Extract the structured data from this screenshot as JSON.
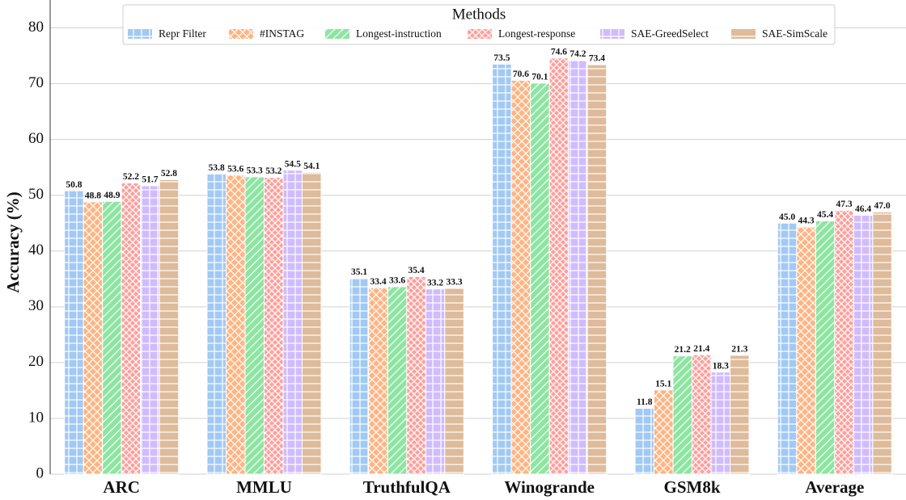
{
  "chart_data": {
    "type": "bar",
    "y_label": "Accuracy (%)",
    "legend_title": "Methods",
    "legend_position": "upper center",
    "grid": true,
    "categories": [
      "ARC",
      "MMLU",
      "TruthfulQA",
      "Winogrande",
      "GSM8k",
      "Average"
    ],
    "ylim": [
      0,
      85
    ],
    "yticks": [
      0,
      10,
      20,
      30,
      40,
      50,
      60,
      70,
      80
    ],
    "series": [
      {
        "name": "Repr Filter",
        "color": "#a1c9f4",
        "hatch": "+",
        "values": [
          50.8,
          53.8,
          35.1,
          73.5,
          11.8,
          45.0
        ],
        "value_labels": [
          "50.8",
          "53.8",
          "35.1",
          "73.5",
          "11.8",
          "45.0"
        ]
      },
      {
        "name": "#INSTAG",
        "color": "#ffb482",
        "hatch": "x",
        "values": [
          48.8,
          53.6,
          33.4,
          70.6,
          15.1,
          44.3
        ],
        "value_labels": [
          "48.8",
          "53.6",
          "33.4",
          "70.6",
          "15.1",
          "44.3"
        ]
      },
      {
        "name": "Longest-instruction",
        "color": "#8de5a1",
        "hatch": "/",
        "values": [
          48.9,
          53.3,
          33.6,
          70.1,
          21.2,
          45.4
        ],
        "value_labels": [
          "48.9",
          "53.3",
          "33.6",
          "70.1",
          "21.2",
          "45.4"
        ]
      },
      {
        "name": "Longest-response",
        "color": "#ff9f9b",
        "hatch": "x",
        "values": [
          52.2,
          53.2,
          35.4,
          74.6,
          21.4,
          47.3
        ],
        "value_labels": [
          "52.2",
          "53.2",
          "35.4",
          "74.6",
          "21.4",
          "47.3"
        ]
      },
      {
        "name": "SAE-GreedSelect",
        "color": "#d0bbff",
        "hatch": "+",
        "values": [
          51.7,
          54.5,
          33.2,
          74.2,
          18.3,
          46.4
        ],
        "value_labels": [
          "51.7",
          "54.5",
          "33.2",
          "74.2",
          "18.3",
          "46.4"
        ]
      },
      {
        "name": "SAE-SimScale",
        "color": "#debb9b",
        "hatch": "-",
        "values": [
          52.8,
          54.1,
          33.3,
          73.4,
          21.3,
          47.0
        ],
        "value_labels": [
          "52.8",
          "54.1",
          "33.3",
          "73.4",
          "21.3",
          "47.0"
        ]
      }
    ]
  }
}
